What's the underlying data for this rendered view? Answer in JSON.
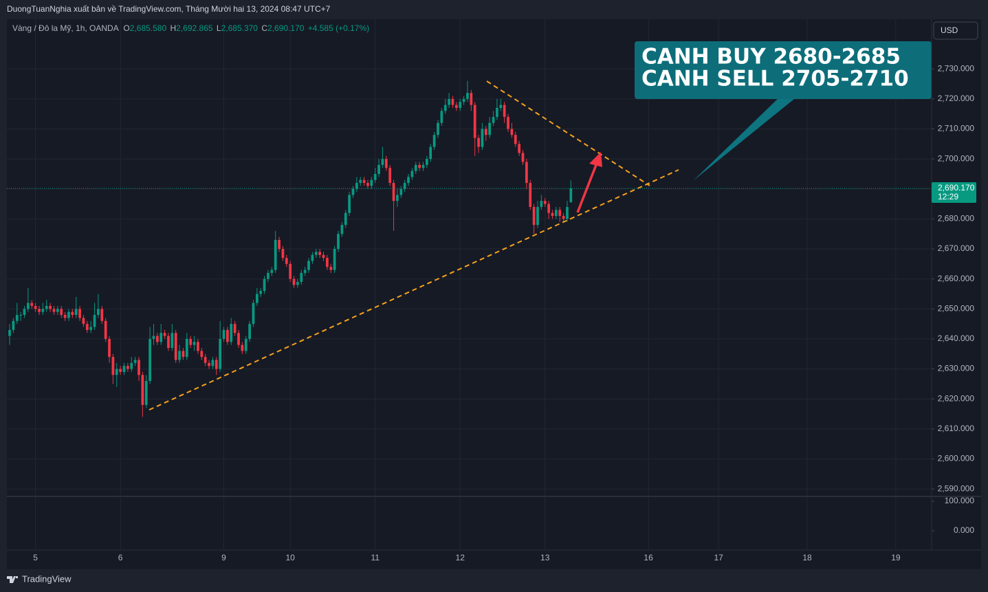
{
  "header": {
    "title": "DuongTuanNghia xuất bản về TradingView.com, Tháng Mười hai 13, 2024 08:47 UTC+7"
  },
  "legend": {
    "symbol": "Vàng / Đô la Mỹ, 1h, OANDA",
    "open": {
      "label": "O",
      "value": "2,685.580"
    },
    "high": {
      "label": "H",
      "value": "2,692.865"
    },
    "low": {
      "label": "L",
      "value": "2,685.370"
    },
    "close": {
      "label": "C",
      "value": "2,690.170"
    },
    "change": "+4.585 (+0.17%)"
  },
  "currency_button": "USD",
  "annotation": {
    "line1": "CANH BUY 2680-2685",
    "line2": "CANH SELL 2705-2710"
  },
  "footer": {
    "brand": "TradingView"
  },
  "chart_data": {
    "type": "candlestick",
    "up_color": "#089981",
    "down_color": "#f23645",
    "grid": true,
    "ylim": [
      2587.5,
      2746.1
    ],
    "yticks": [
      {
        "value": 2590,
        "label": "2,590.000"
      },
      {
        "value": 2600,
        "label": "2,600.000"
      },
      {
        "value": 2610,
        "label": "2,610.000"
      },
      {
        "value": 2620,
        "label": "2,620.000"
      },
      {
        "value": 2630,
        "label": "2,630.000"
      },
      {
        "value": 2640,
        "label": "2,640.000"
      },
      {
        "value": 2650,
        "label": "2,650.000"
      },
      {
        "value": 2660,
        "label": "2,660.000"
      },
      {
        "value": 2670,
        "label": "2,670.000"
      },
      {
        "value": 2680,
        "label": "2,680.000"
      },
      {
        "value": 2690,
        "label": "2,690.000"
      },
      {
        "value": 2700,
        "label": "2,700.000"
      },
      {
        "value": 2710,
        "label": "2,710.000"
      },
      {
        "value": 2720,
        "label": "2,720.000"
      },
      {
        "value": 2730,
        "label": "2,730.000"
      }
    ],
    "xlim": [
      -0.75,
      249.7
    ],
    "xticks": [
      {
        "value": 7,
        "label": "5"
      },
      {
        "value": 30,
        "label": "6"
      },
      {
        "value": 58,
        "label": "9"
      },
      {
        "value": 76,
        "label": "10"
      },
      {
        "value": 99,
        "label": "11"
      },
      {
        "value": 122,
        "label": "12"
      },
      {
        "value": 145,
        "label": "13"
      },
      {
        "value": 173,
        "label": "16"
      },
      {
        "value": 192,
        "label": "17"
      },
      {
        "value": 216,
        "label": "18"
      },
      {
        "value": 240,
        "label": "19"
      }
    ],
    "last_price": {
      "value": 2690.17,
      "label": "2,690.170",
      "countdown": "12:29"
    },
    "candles": [
      [
        2641,
        2645,
        2638,
        2643
      ],
      [
        2643,
        2647,
        2642,
        2646
      ],
      [
        2646,
        2652,
        2645,
        2648
      ],
      [
        2648,
        2649,
        2646,
        2648
      ],
      [
        2648,
        2651,
        2647,
        2650
      ],
      [
        2650,
        2657,
        2649,
        2652
      ],
      [
        2652,
        2653,
        2650,
        2651
      ],
      [
        2651,
        2652,
        2649,
        2650
      ],
      [
        2650,
        2651,
        2648,
        2649
      ],
      [
        2649,
        2652,
        2648,
        2650
      ],
      [
        2650,
        2653,
        2649,
        2651
      ],
      [
        2651,
        2652,
        2649,
        2650
      ],
      [
        2650,
        2651,
        2648,
        2649
      ],
      [
        2649,
        2651,
        2648,
        2650
      ],
      [
        2650,
        2651,
        2647,
        2648
      ],
      [
        2648,
        2649,
        2646,
        2647
      ],
      [
        2647,
        2650,
        2646,
        2649
      ],
      [
        2649,
        2650,
        2647,
        2648
      ],
      [
        2648,
        2654,
        2647,
        2650
      ],
      [
        2650,
        2651,
        2646,
        2647
      ],
      [
        2647,
        2648,
        2644,
        2645
      ],
      [
        2645,
        2646,
        2642,
        2643
      ],
      [
        2643,
        2646,
        2642,
        2644
      ],
      [
        2644,
        2652,
        2643,
        2648
      ],
      [
        2648,
        2655,
        2647,
        2650
      ],
      [
        2650,
        2651,
        2645,
        2646
      ],
      [
        2646,
        2647,
        2639,
        2640
      ],
      [
        2640,
        2641,
        2632,
        2634
      ],
      [
        2634,
        2635,
        2625,
        2628
      ],
      [
        2628,
        2632,
        2624,
        2630
      ],
      [
        2630,
        2631,
        2628,
        2629
      ],
      [
        2629,
        2632,
        2628,
        2631
      ],
      [
        2631,
        2632,
        2629,
        2630
      ],
      [
        2630,
        2634,
        2629,
        2632
      ],
      [
        2632,
        2634,
        2631,
        2633
      ],
      [
        2633,
        2634,
        2626,
        2628
      ],
      [
        2628,
        2629,
        2614,
        2618
      ],
      [
        2618,
        2628,
        2617,
        2626
      ],
      [
        2626,
        2644,
        2625,
        2640
      ],
      [
        2640,
        2645,
        2638,
        2641
      ],
      [
        2641,
        2642,
        2638,
        2639
      ],
      [
        2639,
        2645,
        2638,
        2642
      ],
      [
        2642,
        2643,
        2640,
        2641
      ],
      [
        2641,
        2642,
        2636,
        2637
      ],
      [
        2637,
        2645,
        2636,
        2642
      ],
      [
        2642,
        2643,
        2632,
        2633
      ],
      [
        2633,
        2638,
        2632,
        2636
      ],
      [
        2636,
        2637,
        2633,
        2634
      ],
      [
        2634,
        2642,
        2633,
        2640
      ],
      [
        2640,
        2641,
        2637,
        2638
      ],
      [
        2638,
        2641,
        2636,
        2639
      ],
      [
        2639,
        2640,
        2635,
        2636
      ],
      [
        2636,
        2637,
        2633,
        2634
      ],
      [
        2634,
        2635,
        2631,
        2632
      ],
      [
        2632,
        2633,
        2630,
        2631
      ],
      [
        2631,
        2634,
        2630,
        2633
      ],
      [
        2633,
        2634,
        2628,
        2630
      ],
      [
        2630,
        2646,
        2629,
        2640
      ],
      [
        2640,
        2644,
        2639,
        2643
      ],
      [
        2643,
        2644,
        2638,
        2639
      ],
      [
        2639,
        2647,
        2638,
        2645
      ],
      [
        2645,
        2646,
        2641,
        2642
      ],
      [
        2642,
        2643,
        2637,
        2638
      ],
      [
        2638,
        2639,
        2635,
        2636
      ],
      [
        2636,
        2641,
        2635,
        2640
      ],
      [
        2640,
        2646,
        2639,
        2645
      ],
      [
        2645,
        2653,
        2644,
        2652
      ],
      [
        2652,
        2657,
        2651,
        2655
      ],
      [
        2655,
        2657,
        2654,
        2656
      ],
      [
        2656,
        2661,
        2655,
        2660
      ],
      [
        2660,
        2663,
        2659,
        2662
      ],
      [
        2662,
        2664,
        2661,
        2663
      ],
      [
        2663,
        2676,
        2662,
        2673
      ],
      [
        2673,
        2674,
        2669,
        2670
      ],
      [
        2670,
        2671,
        2666,
        2667
      ],
      [
        2667,
        2668,
        2664,
        2665
      ],
      [
        2665,
        2666,
        2659,
        2660
      ],
      [
        2660,
        2661,
        2657,
        2658
      ],
      [
        2658,
        2660,
        2657,
        2659
      ],
      [
        2659,
        2663,
        2658,
        2662
      ],
      [
        2662,
        2664,
        2661,
        2663
      ],
      [
        2663,
        2667,
        2662,
        2666
      ],
      [
        2666,
        2669,
        2665,
        2668
      ],
      [
        2668,
        2670,
        2667,
        2669
      ],
      [
        2669,
        2670,
        2667,
        2668
      ],
      [
        2668,
        2669,
        2666,
        2667
      ],
      [
        2667,
        2668,
        2663,
        2664
      ],
      [
        2664,
        2665,
        2662,
        2663
      ],
      [
        2663,
        2671,
        2662,
        2670
      ],
      [
        2670,
        2676,
        2669,
        2675
      ],
      [
        2675,
        2679,
        2674,
        2678
      ],
      [
        2678,
        2683,
        2677,
        2682
      ],
      [
        2682,
        2689,
        2681,
        2688
      ],
      [
        2688,
        2691,
        2687,
        2690
      ],
      [
        2690,
        2694,
        2689,
        2692
      ],
      [
        2692,
        2694,
        2691,
        2693
      ],
      [
        2693,
        2694,
        2691,
        2692
      ],
      [
        2692,
        2693,
        2690,
        2691
      ],
      [
        2691,
        2694,
        2690,
        2693
      ],
      [
        2693,
        2697,
        2692,
        2695
      ],
      [
        2695,
        2700,
        2694,
        2698
      ],
      [
        2698,
        2704,
        2697,
        2700
      ],
      [
        2700,
        2701,
        2696,
        2697
      ],
      [
        2697,
        2698,
        2691,
        2692
      ],
      [
        2692,
        2693,
        2676,
        2686
      ],
      [
        2686,
        2690,
        2684,
        2688
      ],
      [
        2688,
        2691,
        2687,
        2690
      ],
      [
        2690,
        2693,
        2689,
        2692
      ],
      [
        2692,
        2695,
        2691,
        2694
      ],
      [
        2694,
        2697,
        2693,
        2696
      ],
      [
        2696,
        2699,
        2695,
        2698
      ],
      [
        2698,
        2699,
        2696,
        2697
      ],
      [
        2697,
        2699,
        2696,
        2698
      ],
      [
        2698,
        2701,
        2697,
        2700
      ],
      [
        2700,
        2705,
        2699,
        2704
      ],
      [
        2704,
        2709,
        2703,
        2708
      ],
      [
        2708,
        2713,
        2707,
        2712
      ],
      [
        2712,
        2717,
        2711,
        2716
      ],
      [
        2716,
        2720,
        2715,
        2718
      ],
      [
        2718,
        2722,
        2717,
        2720
      ],
      [
        2720,
        2721,
        2717,
        2718
      ],
      [
        2718,
        2719,
        2716,
        2717
      ],
      [
        2717,
        2720,
        2716,
        2719
      ],
      [
        2719,
        2721,
        2718,
        2720
      ],
      [
        2720,
        2726,
        2719,
        2722
      ],
      [
        2722,
        2723,
        2716,
        2718
      ],
      [
        2718,
        2719,
        2701,
        2707
      ],
      [
        2707,
        2708,
        2702,
        2704
      ],
      [
        2704,
        2712,
        2703,
        2710
      ],
      [
        2710,
        2711,
        2706,
        2708
      ],
      [
        2708,
        2714,
        2707,
        2712
      ],
      [
        2712,
        2716,
        2711,
        2714
      ],
      [
        2714,
        2720,
        2713,
        2717
      ],
      [
        2717,
        2720,
        2716,
        2718
      ],
      [
        2718,
        2719,
        2712,
        2714
      ],
      [
        2714,
        2715,
        2709,
        2710
      ],
      [
        2710,
        2712,
        2707,
        2708
      ],
      [
        2708,
        2709,
        2704,
        2705
      ],
      [
        2705,
        2706,
        2701,
        2702
      ],
      [
        2702,
        2703,
        2698,
        2699
      ],
      [
        2699,
        2700,
        2690,
        2692
      ],
      [
        2692,
        2693,
        2683,
        2684
      ],
      [
        2684,
        2685,
        2675,
        2678
      ],
      [
        2678,
        2686,
        2677,
        2684
      ],
      [
        2684,
        2688,
        2683,
        2686
      ],
      [
        2686,
        2687,
        2684,
        2685
      ],
      [
        2685,
        2686,
        2680,
        2682
      ],
      [
        2682,
        2683,
        2680,
        2681
      ],
      [
        2681,
        2684,
        2680,
        2683
      ],
      [
        2683,
        2684,
        2679,
        2681
      ],
      [
        2681,
        2682,
        2679,
        2680
      ],
      [
        2680,
        2686,
        2679,
        2684
      ],
      [
        2685.58,
        2692.865,
        2685.37,
        2690.17
      ]
    ],
    "volume_pane": {
      "ylim": [
        -65,
        116
      ],
      "yticks": [
        {
          "value": 100,
          "label": "100.000"
        },
        {
          "value": 0,
          "label": "0.000"
        }
      ]
    }
  }
}
